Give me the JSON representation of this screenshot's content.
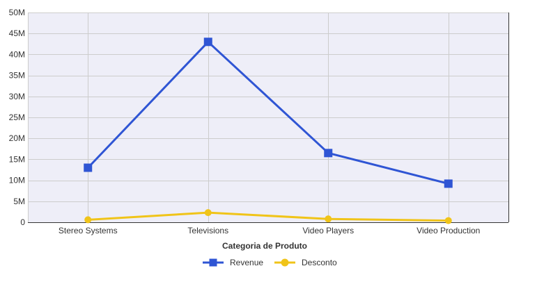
{
  "chart_data": {
    "type": "line",
    "title": "",
    "xlabel": "Categoria de Produto",
    "ylabel": "",
    "categories": [
      "Stereo Systems",
      "Televisions",
      "Video Players",
      "Video Production"
    ],
    "series": [
      {
        "name": "Revenue",
        "color": "#2f55d4",
        "marker": "square",
        "values": [
          13000000,
          43000000,
          16500000,
          9200000
        ]
      },
      {
        "name": "Desconto",
        "color": "#f0c419",
        "marker": "circle",
        "values": [
          600000,
          2300000,
          800000,
          400000
        ]
      }
    ],
    "ylim": [
      0,
      50000000
    ],
    "y_ticks": [
      0,
      5000000,
      10000000,
      15000000,
      20000000,
      25000000,
      30000000,
      35000000,
      40000000,
      45000000,
      50000000
    ],
    "y_tick_labels": [
      "0",
      "5M",
      "10M",
      "15M",
      "20M",
      "25M",
      "30M",
      "35M",
      "40M",
      "45M",
      "50M"
    ],
    "grid": true,
    "legend_position": "bottom-center",
    "plot_background": "#eeeef8",
    "grid_color": "#cccccc"
  }
}
